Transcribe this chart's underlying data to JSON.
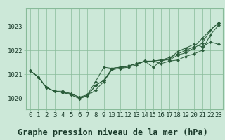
{
  "xlabel": "Graphe pression niveau de la mer (hPa)",
  "background_color": "#cce8d8",
  "grid_color": "#88bb99",
  "line_color": "#2a5c3a",
  "xlim": [
    -0.5,
    23.5
  ],
  "ylim": [
    1019.55,
    1023.75
  ],
  "yticks": [
    1020,
    1021,
    1022,
    1023
  ],
  "xticks": [
    0,
    1,
    2,
    3,
    4,
    5,
    6,
    7,
    8,
    9,
    10,
    11,
    12,
    13,
    14,
    15,
    16,
    17,
    18,
    19,
    20,
    21,
    22,
    23
  ],
  "series": [
    [
      1021.15,
      1020.9,
      1020.45,
      1020.3,
      1020.3,
      1020.2,
      1020.05,
      1020.15,
      1020.7,
      1021.3,
      1021.25,
      1021.3,
      1021.35,
      1021.45,
      1021.55,
      1021.55,
      1021.45,
      1021.55,
      1021.6,
      1021.75,
      1021.85,
      1022.0,
      1022.65,
      1023.05
    ],
    [
      1021.15,
      1020.9,
      1020.45,
      1020.3,
      1020.25,
      1020.2,
      1020.05,
      1020.1,
      1020.35,
      1020.7,
      1021.2,
      1021.25,
      1021.3,
      1021.4,
      1021.55,
      1021.55,
      1021.6,
      1021.6,
      1021.8,
      1021.9,
      1022.1,
      1022.3,
      1022.85,
      1023.15
    ],
    [
      1021.15,
      1020.9,
      1020.45,
      1020.3,
      1020.25,
      1020.15,
      1020.0,
      1020.1,
      1020.55,
      1020.75,
      1021.2,
      1021.25,
      1021.35,
      1021.45,
      1021.55,
      1021.55,
      1021.6,
      1021.7,
      1021.85,
      1022.0,
      1022.15,
      1022.5,
      1022.85,
      1023.15
    ],
    [
      1021.15,
      1020.9,
      1020.45,
      1020.3,
      1020.25,
      1020.15,
      1020.0,
      1020.1,
      1020.55,
      1020.75,
      1021.25,
      1021.3,
      1021.35,
      1021.45,
      1021.55,
      1021.3,
      1021.55,
      1021.65,
      1021.95,
      1022.1,
      1022.25,
      1022.15,
      1022.35,
      1022.25
    ]
  ],
  "xlabel_fontsize": 8.5,
  "tick_fontsize": 6.5,
  "label_color": "#1a3a2a"
}
